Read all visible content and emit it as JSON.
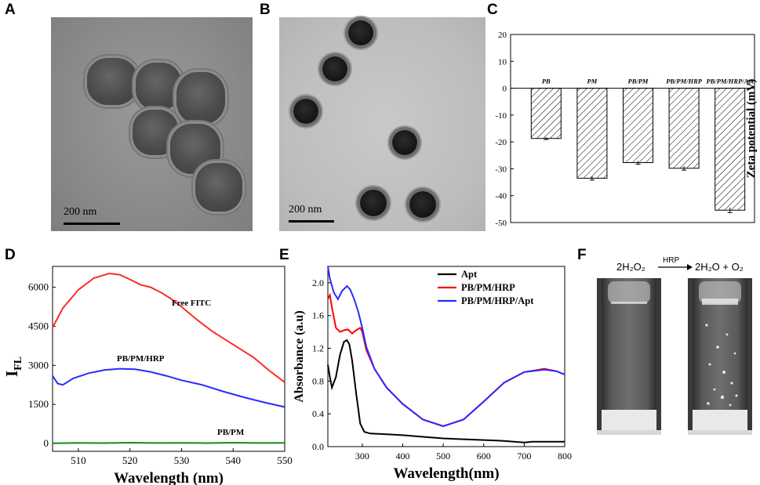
{
  "panels": {
    "A": {
      "letter": "A",
      "scale_text": "200 nm"
    },
    "B": {
      "letter": "B",
      "scale_text": "200 nm"
    },
    "F": {
      "letter": "F",
      "reactant": "2H₂O₂",
      "catalyst": "HRP",
      "products": "2H₂O + O₂"
    }
  },
  "chart_data": [
    {
      "panel": "C",
      "type": "bar",
      "ylabel": "Zeta potential (mV)",
      "categories": [
        "PB",
        "PM",
        "PB/PM",
        "PB/PM/HRP",
        "PB/PM/HRP/Apt"
      ],
      "values": [
        -18.7,
        -33.5,
        -27.7,
        -29.8,
        -45.4
      ],
      "errors": [
        0.4,
        0.7,
        0.6,
        0.7,
        0.9
      ],
      "ylim": [
        -50,
        20
      ],
      "yticks": [
        20,
        10,
        0,
        -10,
        -20,
        -30,
        -40,
        -50
      ],
      "bar_fill": "hatched",
      "bar_color": "#000000"
    },
    {
      "panel": "D",
      "type": "line",
      "xlabel": "Wavelength (nm)",
      "ylabel": "I",
      "ylabel_sub": "FL",
      "xlim": [
        505,
        550
      ],
      "ylim": [
        -300,
        6800
      ],
      "xticks": [
        510,
        520,
        530,
        540,
        550
      ],
      "yticks": [
        0,
        1500,
        3000,
        4500,
        6000
      ],
      "series": [
        {
          "name": "Free FITC",
          "color": "#ff2a2a",
          "x": [
            505,
            507,
            510,
            513,
            516,
            518,
            520,
            522,
            524,
            526,
            528,
            530,
            533,
            536,
            540,
            544,
            547,
            550
          ],
          "y": [
            4450,
            5200,
            5900,
            6350,
            6530,
            6480,
            6300,
            6100,
            6000,
            5800,
            5550,
            5250,
            4750,
            4300,
            3800,
            3300,
            2800,
            2350
          ]
        },
        {
          "name": "PB/PM/HRP",
          "color": "#2a2aff",
          "x": [
            505,
            506,
            507,
            509,
            512,
            515,
            518,
            521,
            524,
            527,
            530,
            534,
            538,
            542,
            546,
            550
          ],
          "y": [
            2600,
            2300,
            2250,
            2500,
            2700,
            2820,
            2870,
            2850,
            2750,
            2600,
            2430,
            2250,
            2000,
            1780,
            1580,
            1400
          ]
        },
        {
          "name": "PB/PM",
          "color": "#1a8a1a",
          "x": [
            505,
            510,
            515,
            520,
            525,
            530,
            535,
            540,
            545,
            550
          ],
          "y": [
            10,
            25,
            15,
            30,
            20,
            25,
            15,
            30,
            20,
            25
          ]
        }
      ]
    },
    {
      "panel": "E",
      "type": "line",
      "xlabel": "Wavelength(nm)",
      "ylabel": "Absorbance (a.u)",
      "xlim": [
        215,
        800
      ],
      "ylim": [
        0,
        2.2
      ],
      "xticks": [
        300,
        400,
        500,
        600,
        700,
        800
      ],
      "yticks": [
        0.0,
        0.4,
        0.8,
        1.2,
        1.6,
        2.0
      ],
      "legend": "top-right",
      "series": [
        {
          "name": "Apt",
          "color": "#000000",
          "x": [
            215,
            220,
            225,
            235,
            245,
            255,
            262,
            268,
            275,
            285,
            295,
            305,
            320,
            360,
            400,
            450,
            500,
            550,
            600,
            650,
            700,
            720,
            750,
            800
          ],
          "y": [
            1.0,
            0.85,
            0.72,
            0.85,
            1.12,
            1.28,
            1.3,
            1.25,
            1.05,
            0.65,
            0.28,
            0.18,
            0.16,
            0.15,
            0.14,
            0.12,
            0.1,
            0.09,
            0.08,
            0.07,
            0.05,
            0.06,
            0.06,
            0.06
          ]
        },
        {
          "name": "PB/PM/HRP",
          "color": "#ff0000",
          "x": [
            215,
            220,
            225,
            235,
            245,
            255,
            265,
            275,
            285,
            295,
            300,
            310,
            330,
            360,
            400,
            450,
            500,
            550,
            600,
            650,
            700,
            750,
            780,
            800
          ],
          "y": [
            1.8,
            1.85,
            1.7,
            1.45,
            1.4,
            1.42,
            1.43,
            1.38,
            1.42,
            1.45,
            1.4,
            1.18,
            0.95,
            0.72,
            0.52,
            0.33,
            0.25,
            0.33,
            0.55,
            0.78,
            0.91,
            0.95,
            0.92,
            0.88
          ]
        },
        {
          "name": "PB/PM/HRP/Apt",
          "color": "#2a2aff",
          "x": [
            215,
            220,
            230,
            240,
            250,
            262,
            270,
            280,
            290,
            300,
            310,
            330,
            360,
            400,
            450,
            500,
            550,
            600,
            650,
            700,
            750,
            780,
            800
          ],
          "y": [
            2.2,
            2.05,
            1.88,
            1.8,
            1.9,
            1.96,
            1.92,
            1.8,
            1.65,
            1.45,
            1.22,
            0.95,
            0.72,
            0.52,
            0.33,
            0.25,
            0.33,
            0.55,
            0.78,
            0.91,
            0.94,
            0.92,
            0.88
          ]
        }
      ]
    }
  ]
}
